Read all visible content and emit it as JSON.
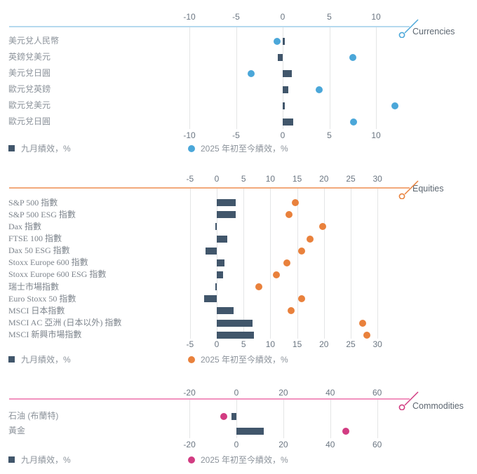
{
  "legend": {
    "bar_label": "九月績效，%",
    "dot_label": "2025 年初至今績效，%"
  },
  "colors": {
    "bar": "#41566b",
    "gridline": "#e4e5e6",
    "tick_text": "#6b7682",
    "category_text": "#8c939b",
    "section_text": "#5d6771",
    "currencies_accent": "#4ba7d9",
    "currencies_axis_line": "#b5d9ee",
    "equities_accent": "#e9813c",
    "equities_axis_line": "#f2a97b",
    "commodities_accent": "#d23c82",
    "commodities_axis_line": "#f193bf"
  },
  "chart_data": [
    {
      "type": "bar",
      "orientation": "horizontal",
      "section": "Currencies",
      "ticks": [
        -10,
        -5,
        0,
        5,
        10
      ],
      "xlim": [
        -10,
        12.5
      ],
      "grid": true,
      "categories": [
        "美元兌人民幣",
        "英鎊兌美元",
        "美元兌日圓",
        "歐元兌英鎊",
        "歐元兌美元",
        "歐元兌日圓"
      ],
      "series": [
        {
          "name": "九月績效，%",
          "style": "bar",
          "values": [
            0.2,
            -0.5,
            1.0,
            0.6,
            0.2,
            1.1
          ]
        },
        {
          "name": "2025 年初至今績效，%",
          "style": "dot",
          "values": [
            -0.6,
            7.5,
            -3.4,
            3.9,
            12.0,
            7.6
          ]
        }
      ]
    },
    {
      "type": "bar",
      "orientation": "horizontal",
      "section": "Equities",
      "ticks": [
        -5,
        0,
        5,
        10,
        15,
        20,
        25,
        30
      ],
      "xlim": [
        -5,
        32
      ],
      "grid": true,
      "categories": [
        "S&P 500 指數",
        "S&P 500 ESG 指數",
        "Dax 指數",
        "FTSE 100 指數",
        "Dax 50 ESG 指數",
        "Stoxx Europe 600 指數",
        "Stoxx Europe 600 ESG 指數",
        "瑞士市場指數",
        "Euro Stoxx 50 指數",
        "MSCI 日本指數",
        "MSCI AC 亞洲 (日本以外) 指數",
        "MSCI 新興市場指數"
      ],
      "series": [
        {
          "name": "九月績效，%",
          "style": "bar",
          "values": [
            3.5,
            3.5,
            -0.2,
            1.9,
            -2.1,
            1.5,
            1.2,
            -0.3,
            -2.3,
            3.1,
            6.7,
            7.0
          ]
        },
        {
          "name": "2025 年初至今績效，%",
          "style": "dot",
          "values": [
            14.7,
            13.5,
            19.8,
            17.4,
            15.9,
            13.1,
            11.1,
            7.8,
            15.9,
            13.9,
            27.2,
            28.0
          ]
        }
      ]
    },
    {
      "type": "bar",
      "orientation": "horizontal",
      "section": "Commodities",
      "ticks": [
        -20,
        0,
        20,
        40,
        60
      ],
      "xlim": [
        -25,
        70
      ],
      "grid": true,
      "categories": [
        "石油 (布蘭特)",
        "黃金"
      ],
      "series": [
        {
          "name": "九月績效，%",
          "style": "bar",
          "values": [
            -2.0,
            11.8
          ]
        },
        {
          "name": "2025 年初至今績效，%",
          "style": "dot",
          "values": [
            -5.5,
            46.5
          ]
        }
      ]
    }
  ]
}
